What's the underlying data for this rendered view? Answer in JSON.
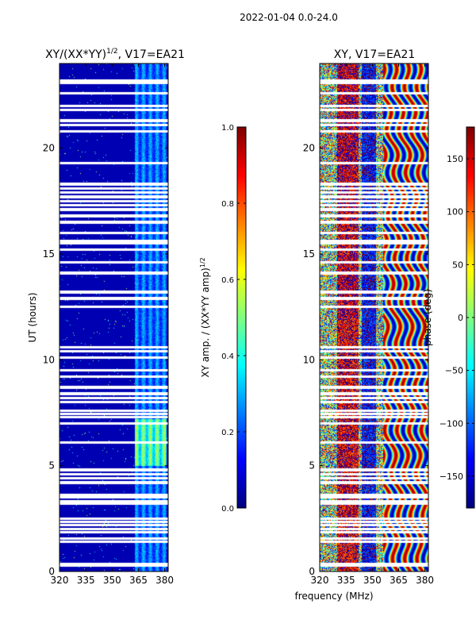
{
  "figure": {
    "suptitle": "2022-01-04 0.0-24.0",
    "shared_xlabel": "frequency (MHz)"
  },
  "chart_data": [
    {
      "type": "heatmap",
      "title": "XY/(XX*YY)^{1/2}, V17=EA21",
      "title_main": "XY/(XX*YY)",
      "title_exp": "1/2",
      "title_tail": ", V17=EA21",
      "xlabel": "frequency (MHz)",
      "ylabel": "UT (hours)",
      "xlim": [
        320,
        382
      ],
      "ylim": [
        0,
        24
      ],
      "xticks": [
        320,
        335,
        350,
        365,
        380
      ],
      "yticks": [
        0,
        5,
        10,
        15,
        20
      ],
      "colormap": "jet",
      "colorbar": {
        "label": "XY amp. / (XX*YY amp)^{1/2}",
        "label_main": "XY amp. / (XX*YY amp)",
        "label_exp": "1/2",
        "range": [
          0.0,
          1.0
        ],
        "ticks": [
          "0.0",
          "0.2",
          "0.4",
          "0.6",
          "0.8",
          "1.0"
        ],
        "tick_values": [
          0.0,
          0.2,
          0.4,
          0.6,
          0.8,
          1.0
        ]
      },
      "flagged_hours": [
        0.3,
        0.35,
        1.4,
        1.55,
        1.85,
        2.0,
        2.2,
        2.35,
        2.5,
        3.2,
        3.3,
        3.5,
        3.6,
        4.2,
        4.4,
        4.6,
        4.8,
        6.1,
        7.0,
        7.3,
        7.45,
        7.6,
        8.0,
        8.2,
        8.4,
        8.7,
        9.2,
        9.5,
        10.1,
        10.4,
        10.6,
        12.5,
        12.9,
        13.2,
        14.1,
        14.6,
        15.2,
        15.5,
        15.6,
        16.0,
        16.5,
        16.8,
        17.1,
        17.3,
        17.5,
        17.7,
        17.9,
        18.1,
        18.3,
        19.3,
        20.8,
        21.1,
        21.3,
        21.8,
        22.0,
        22.6,
        23.1,
        23.2
      ],
      "features": {
        "background_value": 0.05,
        "bright_band_mhz": [
          363,
          381
        ],
        "bright_band_value": 0.25,
        "bright_band_peak_hours": [
          5.0,
          7.2
        ],
        "bright_band_peak_value": 0.45
      }
    },
    {
      "type": "heatmap",
      "title": "XY, V17=EA21",
      "xlabel": "frequency (MHz)",
      "ylabel": "",
      "xlim": [
        320,
        382
      ],
      "ylim": [
        0,
        24
      ],
      "xticks": [
        320,
        335,
        350,
        365,
        380
      ],
      "yticks": [
        0,
        5,
        10,
        15,
        20
      ],
      "colormap": "jet",
      "colorbar": {
        "label": "phase (deg)",
        "range": [
          -180,
          180
        ],
        "ticks": [
          "−150",
          "−100",
          "−50",
          "0",
          "50",
          "100",
          "150"
        ],
        "tick_values": [
          -150,
          -100,
          -50,
          0,
          50,
          100,
          150
        ]
      },
      "flagged_hours": [
        0.3,
        0.35,
        1.4,
        1.55,
        1.85,
        2.0,
        2.2,
        2.35,
        2.5,
        3.2,
        3.3,
        3.5,
        3.6,
        4.2,
        4.4,
        4.6,
        4.8,
        6.1,
        7.0,
        7.3,
        7.45,
        7.6,
        8.0,
        8.2,
        8.4,
        8.7,
        9.2,
        9.5,
        10.1,
        10.4,
        10.6,
        12.5,
        12.9,
        13.2,
        14.1,
        14.6,
        15.2,
        15.5,
        15.6,
        16.0,
        16.5,
        16.8,
        17.1,
        17.3,
        17.5,
        17.7,
        17.9,
        18.1,
        18.3,
        19.3,
        20.8,
        21.1,
        21.3,
        21.8,
        22.0,
        22.6,
        23.1,
        23.2
      ],
      "features": {
        "red_band_mhz": [
          330,
          342
        ],
        "red_band_phase_deg": 150,
        "red_band_upper_phase_deg": 160,
        "blue_band_mhz": [
          344,
          352
        ],
        "blue_band_phase_deg": -140,
        "ripple_region_mhz": [
          356,
          382
        ]
      }
    }
  ]
}
